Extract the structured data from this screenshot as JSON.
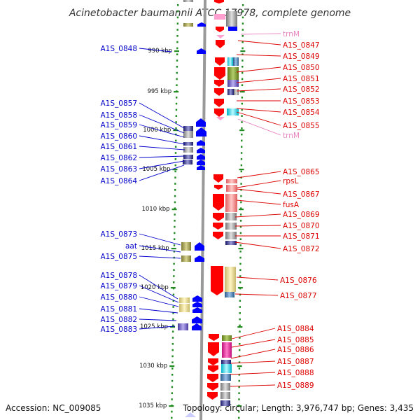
{
  "title": "Acinetobacter baumannii ATCC 17978, complete genome",
  "footer": {
    "accession": "Accession: NC_009085",
    "topology": "Topology: circular; Length: 3,976,747 bp; Genes: 3,435"
  },
  "colors": {
    "forward_gene": "#ff0000",
    "reverse_gene": "#0000ff",
    "rna_gene": "#ff9fd0",
    "backbone": "#999999",
    "ruler": "#228b22"
  },
  "ruler_ticks": [
    "990 kbp",
    "995 kbp",
    "1000 kbp",
    "1005 kbp",
    "1010 kbp",
    "1015 kbp",
    "1020 kbp",
    "1025 kbp",
    "1030 kbp",
    "1035 kbp"
  ],
  "left_labels": [
    "A1S_0848",
    "A1S_0857",
    "A1S_0858",
    "A1S_0859",
    "A1S_0860",
    "A1S_0861",
    "A1S_0862",
    "A1S_0863",
    "A1S_0864",
    "A1S_0873",
    "aat",
    "A1S_0875",
    "A1S_0878",
    "A1S_0879",
    "A1S_0880",
    "A1S_0881",
    "A1S_0882",
    "A1S_0883"
  ],
  "right_labels": [
    "trnM",
    "A1S_0847",
    "A1S_0849",
    "A1S_0850",
    "A1S_0851",
    "A1S_0852",
    "A1S_0853",
    "A1S_0854",
    "A1S_0855",
    "trnM",
    "A1S_0865",
    "rpsL",
    "A1S_0867",
    "fusA",
    "A1S_0869",
    "A1S_0870",
    "A1S_0871",
    "A1S_0872",
    "A1S_0876",
    "A1S_0877",
    "A1S_0884",
    "A1S_0885",
    "A1S_0886",
    "A1S_0887",
    "A1S_0888",
    "A1S_0889"
  ]
}
